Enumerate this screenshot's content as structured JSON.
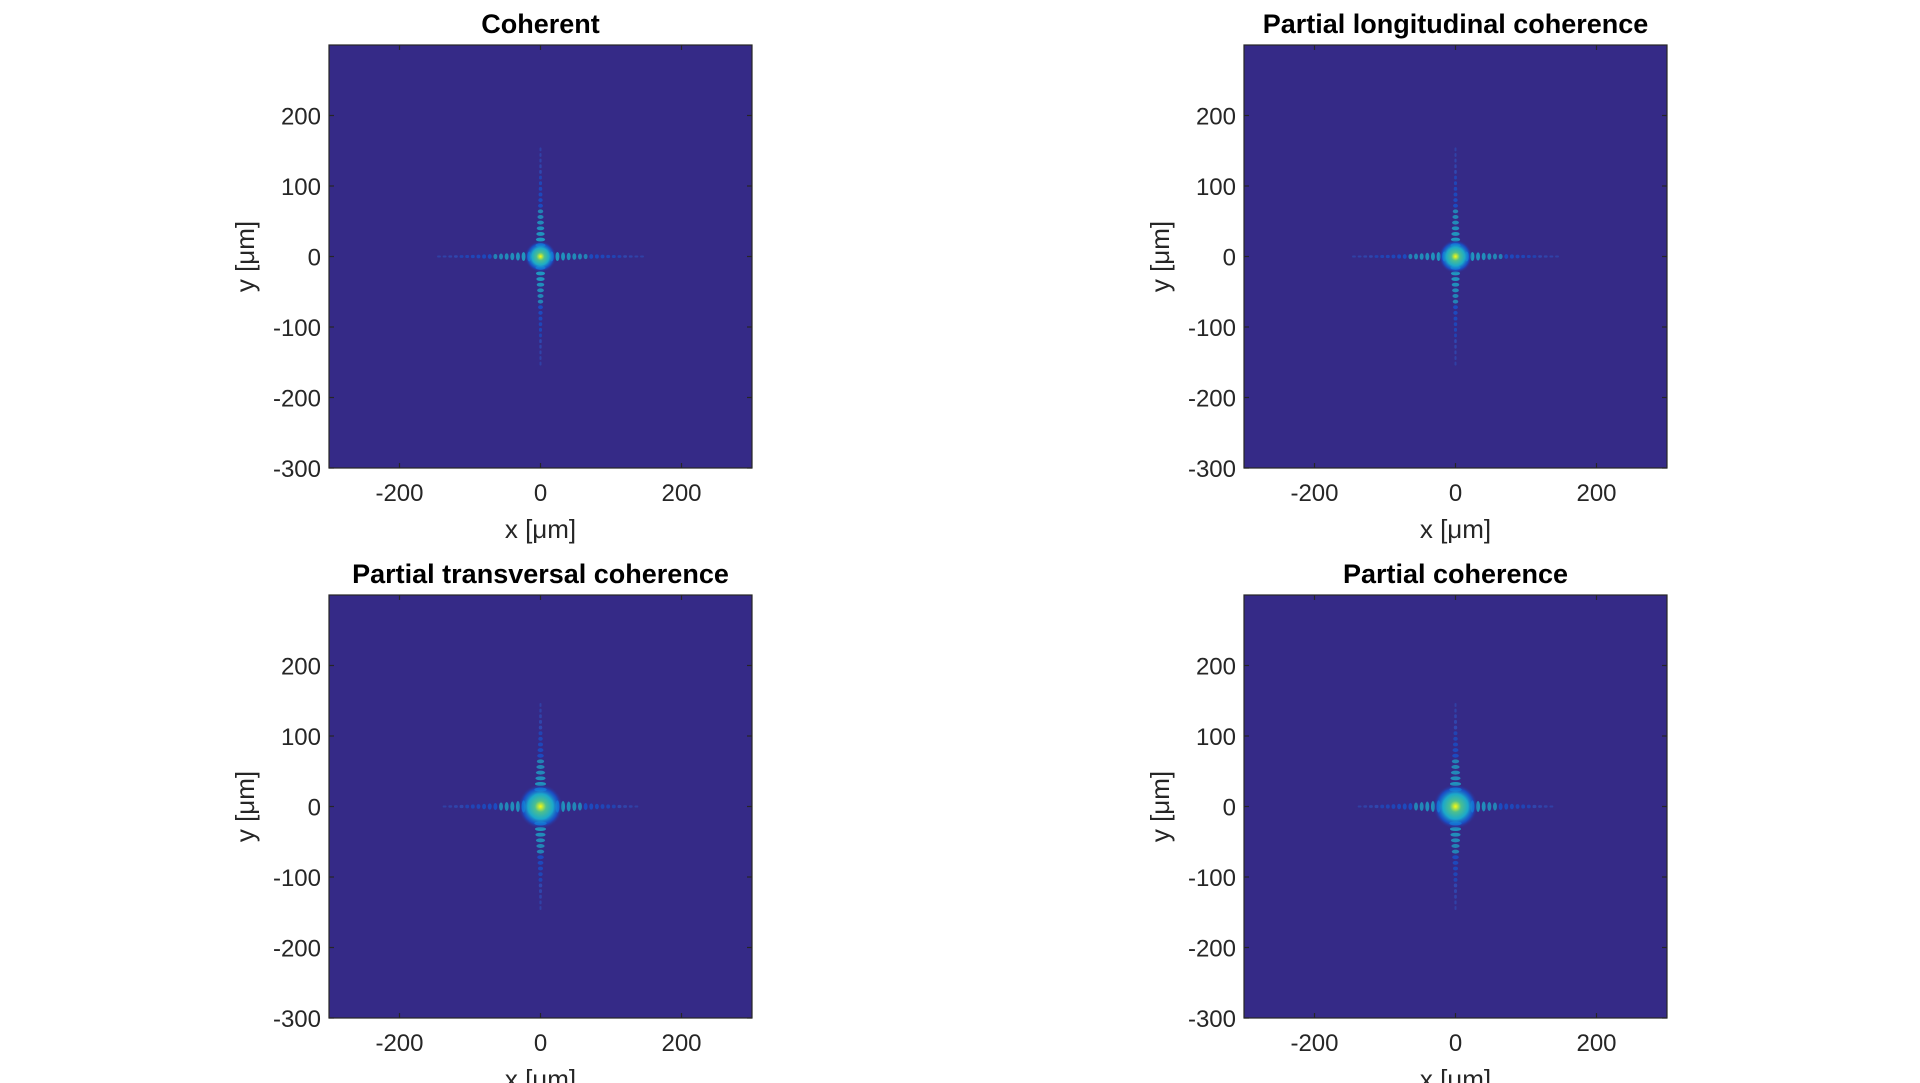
{
  "chart_data": [
    {
      "type": "heatmap",
      "title": "Coherent",
      "xlabel": "x [μm]",
      "ylabel": "y [μm]",
      "xlim": [
        -300,
        300
      ],
      "ylim": [
        -300,
        300
      ],
      "xticks": [
        -200,
        0,
        200
      ],
      "xtick_labels": [
        "-200",
        "0",
        "200"
      ],
      "yticks": [
        -300,
        -200,
        -100,
        0,
        100,
        200
      ],
      "ytick_labels": [
        "-300",
        "-200",
        "-100",
        "0",
        "100",
        "200"
      ],
      "colormap": "parula",
      "peak": [
        0,
        0
      ],
      "arm_extent_x": 150,
      "arm_extent_y": 155,
      "spot_radius": 14
    },
    {
      "type": "heatmap",
      "title": "Partial longitudinal coherence",
      "xlabel": "x [μm]",
      "ylabel": "y [μm]",
      "xlim": [
        -300,
        300
      ],
      "ylim": [
        -300,
        300
      ],
      "xticks": [
        -200,
        0,
        200
      ],
      "xtick_labels": [
        "-200",
        "0",
        "200"
      ],
      "yticks": [
        -300,
        -200,
        -100,
        0,
        100,
        200
      ],
      "ytick_labels": [
        "-300",
        "-200",
        "-100",
        "0",
        "100",
        "200"
      ],
      "colormap": "parula",
      "peak": [
        0,
        0
      ],
      "arm_extent_x": 150,
      "arm_extent_y": 155,
      "spot_radius": 15
    },
    {
      "type": "heatmap",
      "title": "Partial transversal coherence",
      "xlabel": "x [μm]",
      "ylabel": "y [μm]",
      "xlim": [
        -300,
        300
      ],
      "ylim": [
        -300,
        300
      ],
      "xticks": [
        -200,
        0,
        200
      ],
      "xtick_labels": [
        "-200",
        "0",
        "200"
      ],
      "yticks": [
        -300,
        -200,
        -100,
        0,
        100,
        200
      ],
      "ytick_labels": [
        "-300",
        "-200",
        "-100",
        "0",
        "100",
        "200"
      ],
      "colormap": "parula",
      "peak": [
        0,
        0
      ],
      "arm_extent_x": 140,
      "arm_extent_y": 145,
      "spot_radius": 20
    },
    {
      "type": "heatmap",
      "title": "Partial coherence",
      "xlabel": "x [μm]",
      "ylabel": "y [μm]",
      "xlim": [
        -300,
        300
      ],
      "ylim": [
        -300,
        300
      ],
      "xticks": [
        -200,
        0,
        200
      ],
      "xtick_labels": [
        "-200",
        "0",
        "200"
      ],
      "yticks": [
        -300,
        -200,
        -100,
        0,
        100,
        200
      ],
      "ytick_labels": [
        "-300",
        "-200",
        "-100",
        "0",
        "100",
        "200"
      ],
      "colormap": "parula",
      "peak": [
        0,
        0
      ],
      "arm_extent_x": 140,
      "arm_extent_y": 145,
      "spot_radius": 20
    }
  ],
  "colors": {
    "background_low": "#352a87",
    "mid_blue": "#0f5cdd",
    "cyan": "#1ca9c9",
    "teal": "#4cbf8f",
    "yellow": "#f9fb0e"
  }
}
